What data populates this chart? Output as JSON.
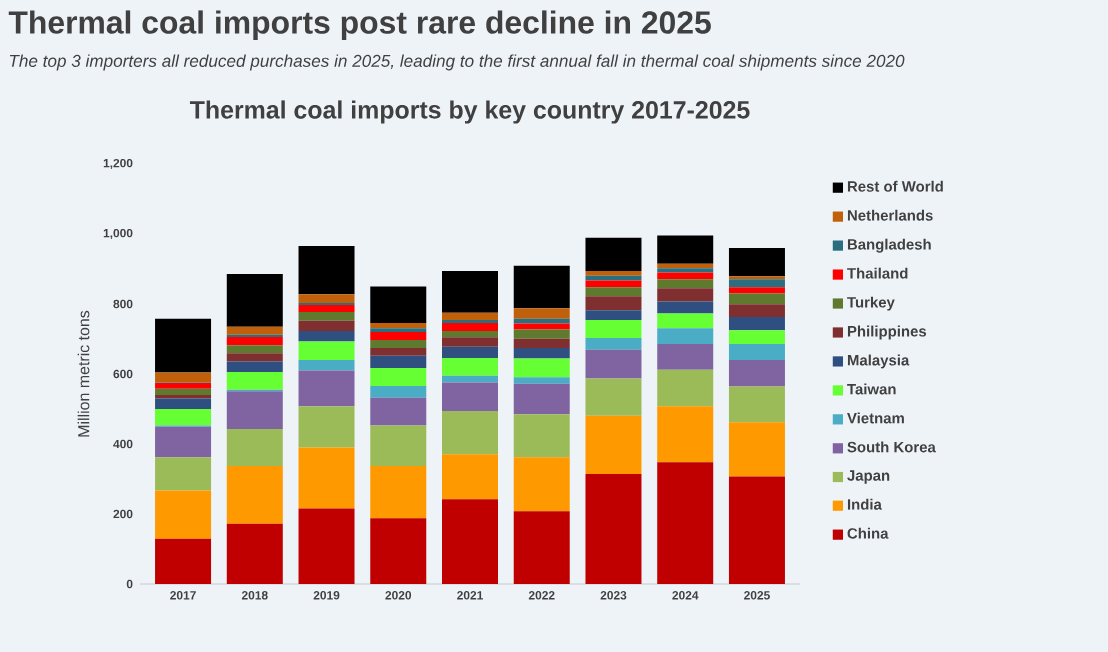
{
  "chart_data": {
    "type": "bar",
    "stacked": true,
    "title": "Thermal coal imports post rare decline in 2025",
    "subtitle": "The top 3 importers all reduced purchases in 2025, leading to the first annual fall in thermal coal shipments since 2020",
    "annotations": [
      "Thermal coal imports by key country 2017-2025"
    ],
    "ylabel": "Million metric tons",
    "categories": [
      "2017",
      "2018",
      "2019",
      "2020",
      "2021",
      "2022",
      "2023",
      "2024",
      "2025"
    ],
    "ylim": [
      0,
      1200
    ],
    "yticks": [
      0,
      200,
      400,
      600,
      800,
      {
        "value": 1000,
        "label": "1,000"
      },
      {
        "value": 1200,
        "label": "1,200"
      }
    ],
    "grid": false,
    "legend": "right",
    "series": [
      {
        "name": "China",
        "color": "#c00000",
        "values": [
          129,
          172,
          216,
          188,
          242,
          208,
          314,
          348,
          307
        ]
      },
      {
        "name": "India",
        "color": "#ff9900",
        "values": [
          138,
          165,
          174,
          149,
          129,
          154,
          167,
          160,
          155
        ]
      },
      {
        "name": "Japan",
        "color": "#9bbb59",
        "values": [
          95,
          106,
          118,
          116,
          123,
          123,
          106,
          104,
          102
        ]
      },
      {
        "name": "South Korea",
        "color": "#8064a2",
        "values": [
          87,
          108,
          102,
          79,
          82,
          87,
          82,
          74,
          76
        ]
      },
      {
        "name": "Vietnam",
        "color": "#4bacc6",
        "values": [
          4,
          4,
          30,
          34,
          19,
          19,
          34,
          45,
          46
        ]
      },
      {
        "name": "Taiwan",
        "color": "#66ff33",
        "values": [
          47,
          51,
          53,
          51,
          51,
          53,
          51,
          42,
          39
        ]
      },
      {
        "name": "Malaysia",
        "color": "#2e4f7f",
        "values": [
          30,
          30,
          30,
          35,
          32,
          30,
          28,
          34,
          38
        ]
      },
      {
        "name": "Philippines",
        "color": "#7f2f2f",
        "values": [
          10,
          23,
          29,
          22,
          27,
          27,
          40,
          38,
          36
        ]
      },
      {
        "name": "Turkey",
        "color": "#5f7a2f",
        "values": [
          18,
          23,
          25,
          23,
          18,
          26,
          26,
          26,
          31
        ]
      },
      {
        "name": "Thailand",
        "color": "#ff0000",
        "values": [
          16,
          24,
          20,
          23,
          23,
          17,
          19,
          19,
          18
        ]
      },
      {
        "name": "Bangladesh",
        "color": "#2a6f80",
        "values": [
          2,
          6,
          6,
          11,
          8,
          14,
          14,
          12,
          23
        ]
      },
      {
        "name": "Netherlands",
        "color": "#c0600a",
        "values": [
          28,
          23,
          25,
          15,
          21,
          30,
          13,
          13,
          8
        ]
      },
      {
        "name": "Rest of World",
        "color": "#000000",
        "values": [
          154,
          151,
          138,
          104,
          119,
          121,
          95,
          81,
          81
        ]
      }
    ]
  }
}
